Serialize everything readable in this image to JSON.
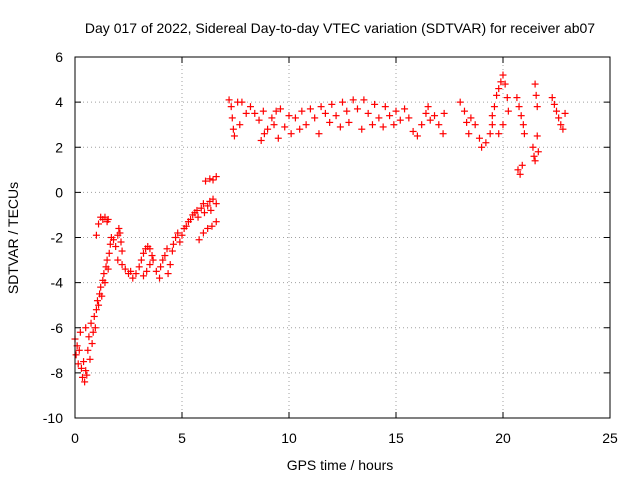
{
  "chart_data": {
    "type": "scatter",
    "title": "Day 017 of 2022, Sidereal Day-to-day VTEC variation (SDTVAR) for receiver ab07",
    "xlabel": "GPS time / hours",
    "ylabel": "SDTVAR / TECUs",
    "xlim": [
      0,
      25
    ],
    "ylim": [
      -10,
      6
    ],
    "xticks": [
      0,
      5,
      10,
      15,
      20,
      25
    ],
    "yticks": [
      -10,
      -8,
      -6,
      -4,
      -2,
      0,
      2,
      4,
      6
    ],
    "grid": true,
    "marker": "+",
    "series_color": "#ff0000",
    "series": [
      {
        "name": "SDTVAR",
        "points": [
          [
            0.0,
            -6.5
          ],
          [
            0.05,
            -7.2
          ],
          [
            0.1,
            -6.8
          ],
          [
            0.15,
            -7.6
          ],
          [
            0.2,
            -7.0
          ],
          [
            0.25,
            -6.2
          ],
          [
            0.3,
            -7.8
          ],
          [
            0.35,
            -8.2
          ],
          [
            0.4,
            -7.5
          ],
          [
            0.45,
            -8.4
          ],
          [
            0.5,
            -7.9
          ],
          [
            0.5,
            -6.0
          ],
          [
            0.55,
            -8.1
          ],
          [
            0.6,
            -7.0
          ],
          [
            0.65,
            -6.4
          ],
          [
            0.7,
            -7.4
          ],
          [
            0.75,
            -5.8
          ],
          [
            0.8,
            -6.7
          ],
          [
            0.85,
            -6.2
          ],
          [
            0.9,
            -5.5
          ],
          [
            0.95,
            -6.0
          ],
          [
            1.0,
            -5.2
          ],
          [
            1.05,
            -4.8
          ],
          [
            1.1,
            -5.0
          ],
          [
            1.15,
            -4.5
          ],
          [
            1.2,
            -4.2
          ],
          [
            1.25,
            -4.6
          ],
          [
            1.3,
            -3.9
          ],
          [
            1.35,
            -3.6
          ],
          [
            1.4,
            -4.0
          ],
          [
            1.45,
            -3.3
          ],
          [
            1.5,
            -3.0
          ],
          [
            1.55,
            -3.4
          ],
          [
            1.6,
            -2.7
          ],
          [
            1.65,
            -2.3
          ],
          [
            1.7,
            -2.0
          ],
          [
            1.0,
            -1.9
          ],
          [
            1.1,
            -1.4
          ],
          [
            1.2,
            -1.1
          ],
          [
            1.3,
            -1.2
          ],
          [
            1.4,
            -1.1
          ],
          [
            1.5,
            -1.3
          ],
          [
            1.55,
            -1.2
          ],
          [
            1.8,
            -2.1
          ],
          [
            1.9,
            -2.4
          ],
          [
            2.0,
            -1.9
          ],
          [
            2.05,
            -1.6
          ],
          [
            2.1,
            -1.8
          ],
          [
            2.15,
            -2.2
          ],
          [
            2.2,
            -2.6
          ],
          [
            2.0,
            -3.0
          ],
          [
            2.2,
            -3.2
          ],
          [
            2.35,
            -3.4
          ],
          [
            2.5,
            -3.6
          ],
          [
            2.6,
            -3.5
          ],
          [
            2.7,
            -3.8
          ],
          [
            2.85,
            -3.6
          ],
          [
            3.0,
            -3.3
          ],
          [
            3.1,
            -3.0
          ],
          [
            3.2,
            -2.7
          ],
          [
            3.3,
            -2.5
          ],
          [
            3.4,
            -2.4
          ],
          [
            3.5,
            -2.5
          ],
          [
            3.6,
            -2.8
          ],
          [
            3.2,
            -3.7
          ],
          [
            3.35,
            -3.5
          ],
          [
            3.5,
            -3.2
          ],
          [
            3.65,
            -3.0
          ],
          [
            3.8,
            -3.5
          ],
          [
            3.95,
            -3.8
          ],
          [
            4.0,
            -3.3
          ],
          [
            4.1,
            -3.0
          ],
          [
            4.2,
            -2.8
          ],
          [
            4.3,
            -2.5
          ],
          [
            4.35,
            -3.6
          ],
          [
            4.45,
            -3.2
          ],
          [
            4.55,
            -2.6
          ],
          [
            4.6,
            -2.3
          ],
          [
            4.7,
            -2.0
          ],
          [
            4.8,
            -1.8
          ],
          [
            4.9,
            -2.2
          ],
          [
            5.0,
            -1.9
          ],
          [
            5.1,
            -1.6
          ],
          [
            5.2,
            -1.5
          ],
          [
            5.3,
            -1.3
          ],
          [
            5.4,
            -1.2
          ],
          [
            5.5,
            -1.0
          ],
          [
            5.6,
            -0.9
          ],
          [
            5.7,
            -0.8
          ],
          [
            5.75,
            -1.1
          ],
          [
            5.9,
            -0.7
          ],
          [
            6.0,
            -0.5
          ],
          [
            6.05,
            -0.9
          ],
          [
            6.2,
            -0.6
          ],
          [
            6.3,
            -0.4
          ],
          [
            6.35,
            -0.8
          ],
          [
            6.45,
            -0.3
          ],
          [
            6.6,
            -0.5
          ],
          [
            5.8,
            -2.1
          ],
          [
            6.0,
            -1.8
          ],
          [
            6.2,
            -1.6
          ],
          [
            6.4,
            -1.5
          ],
          [
            6.6,
            -1.3
          ],
          [
            6.1,
            0.5
          ],
          [
            6.3,
            0.6
          ],
          [
            6.45,
            0.55
          ],
          [
            6.6,
            0.7
          ],
          [
            7.2,
            4.1
          ],
          [
            7.3,
            3.8
          ],
          [
            7.35,
            3.3
          ],
          [
            7.4,
            2.8
          ],
          [
            7.45,
            2.5
          ],
          [
            7.6,
            4.0
          ],
          [
            7.7,
            3.0
          ],
          [
            7.8,
            4.0
          ],
          [
            8.0,
            3.5
          ],
          [
            8.2,
            3.8
          ],
          [
            8.4,
            3.5
          ],
          [
            8.6,
            3.2
          ],
          [
            8.8,
            3.6
          ],
          [
            8.7,
            2.3
          ],
          [
            8.85,
            2.6
          ],
          [
            9.0,
            2.8
          ],
          [
            9.2,
            3.3
          ],
          [
            9.3,
            3.0
          ],
          [
            9.4,
            3.6
          ],
          [
            9.5,
            2.4
          ],
          [
            9.6,
            3.7
          ],
          [
            9.8,
            2.9
          ],
          [
            10.0,
            3.4
          ],
          [
            10.1,
            2.6
          ],
          [
            10.3,
            3.3
          ],
          [
            10.5,
            2.8
          ],
          [
            10.6,
            3.6
          ],
          [
            10.8,
            3.0
          ],
          [
            11.0,
            3.7
          ],
          [
            11.2,
            3.3
          ],
          [
            11.4,
            2.6
          ],
          [
            11.5,
            3.8
          ],
          [
            11.7,
            3.5
          ],
          [
            11.9,
            3.1
          ],
          [
            12.0,
            3.9
          ],
          [
            12.2,
            3.4
          ],
          [
            12.4,
            2.9
          ],
          [
            12.5,
            4.0
          ],
          [
            12.7,
            3.6
          ],
          [
            12.8,
            3.1
          ],
          [
            13.0,
            4.1
          ],
          [
            13.2,
            3.7
          ],
          [
            13.4,
            2.8
          ],
          [
            13.5,
            4.1
          ],
          [
            13.7,
            3.5
          ],
          [
            13.9,
            3.0
          ],
          [
            14.0,
            3.9
          ],
          [
            14.2,
            3.3
          ],
          [
            14.4,
            2.9
          ],
          [
            14.5,
            3.8
          ],
          [
            14.7,
            3.4
          ],
          [
            14.9,
            3.0
          ],
          [
            15.0,
            3.6
          ],
          [
            15.2,
            3.2
          ],
          [
            15.4,
            3.7
          ],
          [
            15.6,
            3.3
          ],
          [
            15.8,
            2.7
          ],
          [
            16.0,
            2.5
          ],
          [
            16.2,
            3.0
          ],
          [
            16.4,
            3.5
          ],
          [
            16.5,
            3.8
          ],
          [
            16.6,
            3.2
          ],
          [
            16.8,
            3.4
          ],
          [
            17.0,
            3.0
          ],
          [
            17.2,
            2.6
          ],
          [
            17.25,
            3.5
          ],
          [
            18.0,
            4.0
          ],
          [
            18.2,
            3.6
          ],
          [
            18.3,
            3.1
          ],
          [
            18.4,
            2.6
          ],
          [
            18.5,
            3.3
          ],
          [
            18.7,
            3.0
          ],
          [
            18.9,
            2.4
          ],
          [
            19.0,
            2.0
          ],
          [
            19.2,
            2.2
          ],
          [
            19.4,
            2.6
          ],
          [
            19.5,
            3.4
          ],
          [
            19.6,
            3.8
          ],
          [
            19.7,
            4.3
          ],
          [
            19.8,
            4.6
          ],
          [
            19.9,
            4.9
          ],
          [
            20.0,
            5.2
          ],
          [
            20.1,
            4.8
          ],
          [
            20.2,
            4.2
          ],
          [
            20.25,
            3.6
          ],
          [
            20.0,
            3.0
          ],
          [
            19.8,
            2.6
          ],
          [
            19.5,
            3.0
          ],
          [
            20.7,
            1.0
          ],
          [
            20.8,
            0.8
          ],
          [
            20.9,
            1.2
          ],
          [
            20.65,
            4.2
          ],
          [
            20.75,
            3.8
          ],
          [
            20.85,
            3.4
          ],
          [
            20.95,
            3.0
          ],
          [
            21.0,
            2.6
          ],
          [
            21.4,
            2.0
          ],
          [
            21.45,
            1.6
          ],
          [
            21.5,
            1.4
          ],
          [
            21.6,
            2.5
          ],
          [
            21.65,
            1.8
          ],
          [
            21.5,
            4.8
          ],
          [
            21.55,
            4.3
          ],
          [
            21.6,
            3.8
          ],
          [
            22.3,
            4.2
          ],
          [
            22.4,
            3.9
          ],
          [
            22.5,
            3.6
          ],
          [
            22.6,
            3.3
          ],
          [
            22.7,
            3.0
          ],
          [
            22.8,
            2.8
          ],
          [
            22.9,
            3.5
          ]
        ]
      }
    ]
  }
}
